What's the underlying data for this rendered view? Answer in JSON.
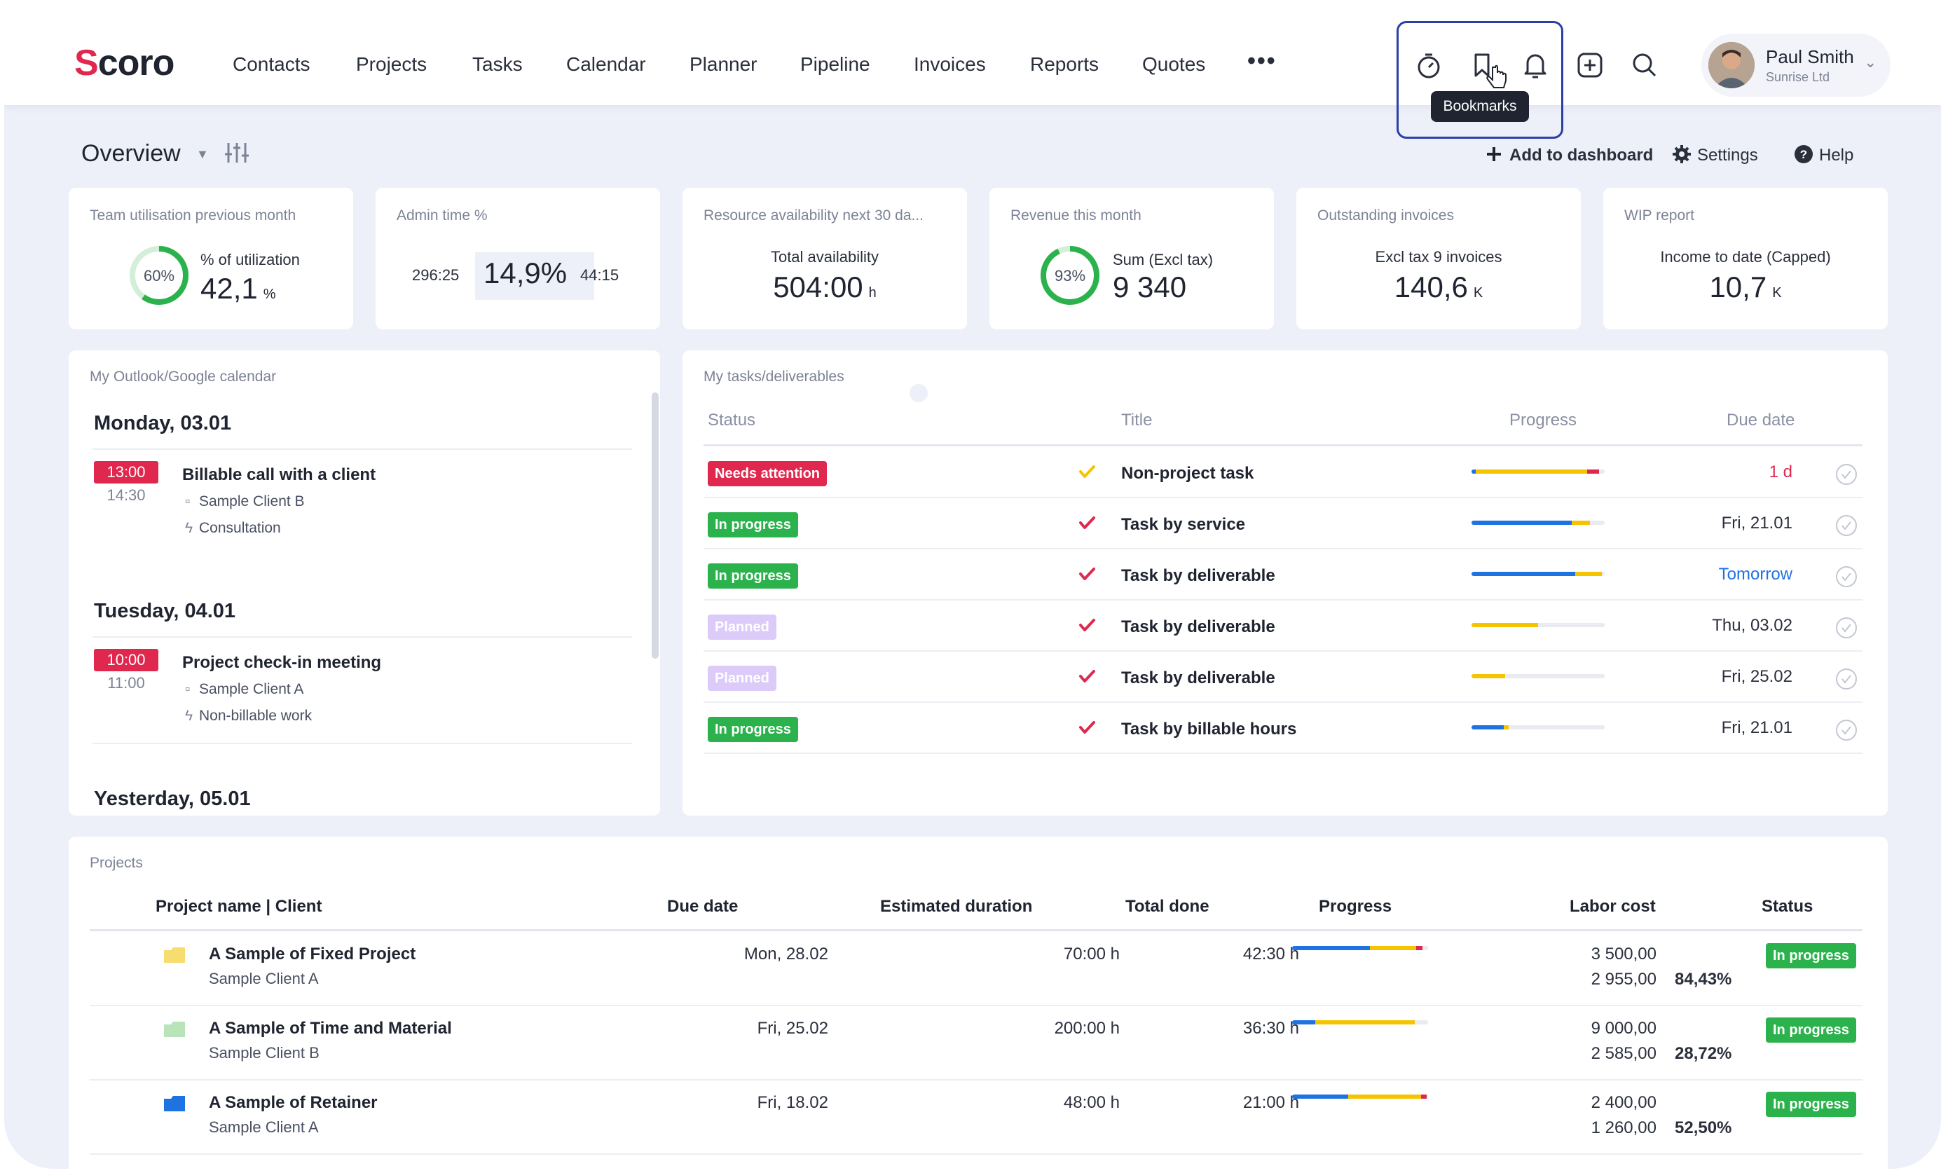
{
  "nav": {
    "logo": "Scoro",
    "items": [
      "Contacts",
      "Projects",
      "Tasks",
      "Calendar",
      "Planner",
      "Pipeline",
      "Invoices",
      "Reports",
      "Quotes"
    ],
    "more": "•••",
    "tooltip": "Bookmarks",
    "icons": [
      "timer-icon",
      "bookmark-icon",
      "bell-icon",
      "add-square-icon",
      "search-icon"
    ]
  },
  "user": {
    "name": "Paul Smith",
    "company": "Sunrise Ltd"
  },
  "overview": {
    "title": "Overview",
    "actions": {
      "add": "Add to dashboard",
      "settings": "Settings",
      "help": "Help"
    }
  },
  "kpis": [
    {
      "label": "Team utilisation previous month",
      "ring_label": "60%",
      "ring_fraction": 0.6,
      "sub": "% of utilization",
      "value": "42,1",
      "unit": "%"
    },
    {
      "label": "Admin time %",
      "left": "296:25",
      "value": "14,9%",
      "right": "44:15"
    },
    {
      "label": "Resource availability next 30 da...",
      "sub": "Total availability",
      "value": "504:00",
      "unit": "h"
    },
    {
      "label": "Revenue this month",
      "ring_label": "93%",
      "ring_fraction": 0.93,
      "sub": "Sum (Excl tax)",
      "value": "9 340"
    },
    {
      "label": "Outstanding invoices",
      "sub": "Excl tax 9 invoices",
      "value": "140,6",
      "unit": "K"
    },
    {
      "label": "WIP report",
      "sub": "Income to date (Capped)",
      "value": "10,7",
      "unit": "K"
    }
  ],
  "calendar": {
    "label": "My Outlook/Google calendar",
    "days": [
      {
        "day": "Monday, 03.01",
        "events": [
          {
            "start": "13:00",
            "end": "14:30",
            "title": "Billable call with a client",
            "client": "Sample Client B",
            "type": "Consultation"
          }
        ]
      },
      {
        "day": "Tuesday, 04.01",
        "events": [
          {
            "start": "10:00",
            "end": "11:00",
            "title": "Project check-in meeting",
            "client": "Sample Client A",
            "type": "Non-billable work"
          }
        ]
      },
      {
        "day": "Yesterday, 05.01",
        "events": []
      }
    ]
  },
  "tasks": {
    "label": "My tasks/deliverables",
    "columns": {
      "status": "Status",
      "title": "Title",
      "progress": "Progress",
      "due": "Due date"
    },
    "rows": [
      {
        "status": "Needs attention",
        "status_color": "#e0284f",
        "check_color": "#f5c400",
        "title": "Non-project task",
        "due": "1 d",
        "due_color": "#e0284f",
        "progress": [
          {
            "color": "#1f73e0",
            "value": 0.03
          },
          {
            "color": "#f5c400",
            "value": 0.84
          },
          {
            "color": "#e0284f",
            "value": 0.09
          }
        ]
      },
      {
        "status": "In progress",
        "status_color": "#2bb24c",
        "check_color": "#e0284f",
        "title": "Task by service",
        "due": "Fri, 21.01",
        "due_color": "#2a2f3c",
        "progress": [
          {
            "color": "#1f73e0",
            "value": 0.75
          },
          {
            "color": "#f5c400",
            "value": 0.14
          }
        ]
      },
      {
        "status": "In progress",
        "status_color": "#2bb24c",
        "check_color": "#e0284f",
        "title": "Task by deliverable",
        "due": "Tomorrow",
        "due_color": "#1f73e0",
        "progress": [
          {
            "color": "#1f73e0",
            "value": 0.78
          },
          {
            "color": "#f5c400",
            "value": 0.2
          }
        ]
      },
      {
        "status": "Planned",
        "status_color": "#dccaf8",
        "check_color": "#e0284f",
        "title": "Task by deliverable",
        "due": "Thu, 03.02",
        "due_color": "#2a2f3c",
        "progress": [
          {
            "color": "#f5c400",
            "value": 0.5
          }
        ]
      },
      {
        "status": "Planned",
        "status_color": "#dccaf8",
        "check_color": "#e0284f",
        "title": "Task by deliverable",
        "due": "Fri, 25.02",
        "due_color": "#2a2f3c",
        "progress": [
          {
            "color": "#f5c400",
            "value": 0.25
          }
        ]
      },
      {
        "status": "In progress",
        "status_color": "#2bb24c",
        "check_color": "#e0284f",
        "title": "Task by billable hours",
        "due": "Fri, 21.01",
        "due_color": "#2a2f3c",
        "progress": [
          {
            "color": "#1f73e0",
            "value": 0.24
          },
          {
            "color": "#f5c400",
            "value": 0.04
          }
        ]
      }
    ]
  },
  "projects": {
    "label": "Projects",
    "columns": {
      "name": "Project name | Client",
      "due": "Due date",
      "duration": "Estimated duration",
      "done": "Total done",
      "progress": "Progress",
      "labor": "Labor cost",
      "status": "Status"
    },
    "rows": [
      {
        "folder_color": "#f7dc6f",
        "name": "A Sample of Fixed Project",
        "client": "Sample Client A",
        "due": "Mon, 28.02",
        "duration": "70:00 h",
        "done": "42:30 h",
        "cost1": "3 500,00",
        "cost2": "2 955,00",
        "pct": "84,43%",
        "status": "In progress",
        "progress": [
          {
            "color": "#1f73e0",
            "value": 0.57
          },
          {
            "color": "#f5c400",
            "value": 0.34
          },
          {
            "color": "#e0284f",
            "value": 0.05
          }
        ]
      },
      {
        "folder_color": "#b9e4b9",
        "name": "A Sample of Time and Material",
        "client": "Sample Client B",
        "due": "Fri, 25.02",
        "duration": "200:00 h",
        "done": "36:30 h",
        "cost1": "9 000,00",
        "cost2": "2 585,00",
        "pct": "28,72%",
        "status": "In progress",
        "progress": [
          {
            "color": "#1f73e0",
            "value": 0.17
          },
          {
            "color": "#f5c400",
            "value": 0.73
          }
        ]
      },
      {
        "folder_color": "#1f73e0",
        "name": "A Sample of Retainer",
        "client": "Sample Client A",
        "due": "Fri, 18.02",
        "duration": "48:00 h",
        "done": "21:00 h",
        "cost1": "2 400,00",
        "cost2": "1 260,00",
        "pct": "52,50%",
        "status": "In progress",
        "progress": [
          {
            "color": "#1f73e0",
            "value": 0.41
          },
          {
            "color": "#f5c400",
            "value": 0.54
          },
          {
            "color": "#e0284f",
            "value": 0.04
          }
        ]
      }
    ]
  }
}
